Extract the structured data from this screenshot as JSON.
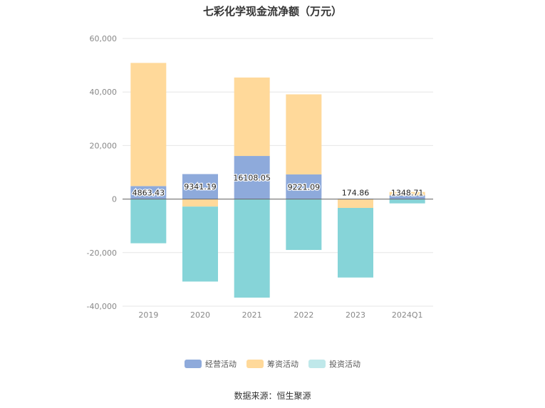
{
  "chart_data": {
    "type": "bar",
    "stacked": true,
    "title": "七彩化学现金流净额（万元）",
    "categories": [
      "2019",
      "2020",
      "2021",
      "2022",
      "2023",
      "2024Q1"
    ],
    "series": [
      {
        "name": "经营活动",
        "color": "#8eaadb",
        "values": [
          4863.43,
          9341.19,
          16108.05,
          9221.09,
          174.86,
          1348.71
        ]
      },
      {
        "name": "筹资活动",
        "color": "#ffd99a",
        "values": [
          46000,
          -2800,
          29300,
          29900,
          -3300,
          1300
        ]
      },
      {
        "name": "投资活动",
        "color": "#86d4d8",
        "values": [
          -16500,
          -28000,
          -36800,
          -19000,
          -26000,
          -1600
        ]
      }
    ],
    "data_labels": [
      "4863.43",
      "9341.19",
      "16108.05",
      "9221.09",
      "174.86",
      "1348.71"
    ],
    "yticks": [
      "60,000",
      "40,000",
      "20,000",
      "0",
      "-20,000",
      "-40,000"
    ],
    "ylim": [
      -40000,
      60000
    ],
    "grid": true,
    "legend_position": "bottom"
  },
  "legend": {
    "items": [
      {
        "label": "经营活动",
        "color": "#8eaadb"
      },
      {
        "label": "筹资活动",
        "color": "#ffd99a"
      },
      {
        "label": "投资活动",
        "color": "#bfe8ea"
      }
    ]
  },
  "source": "数据来源：恒生聚源"
}
